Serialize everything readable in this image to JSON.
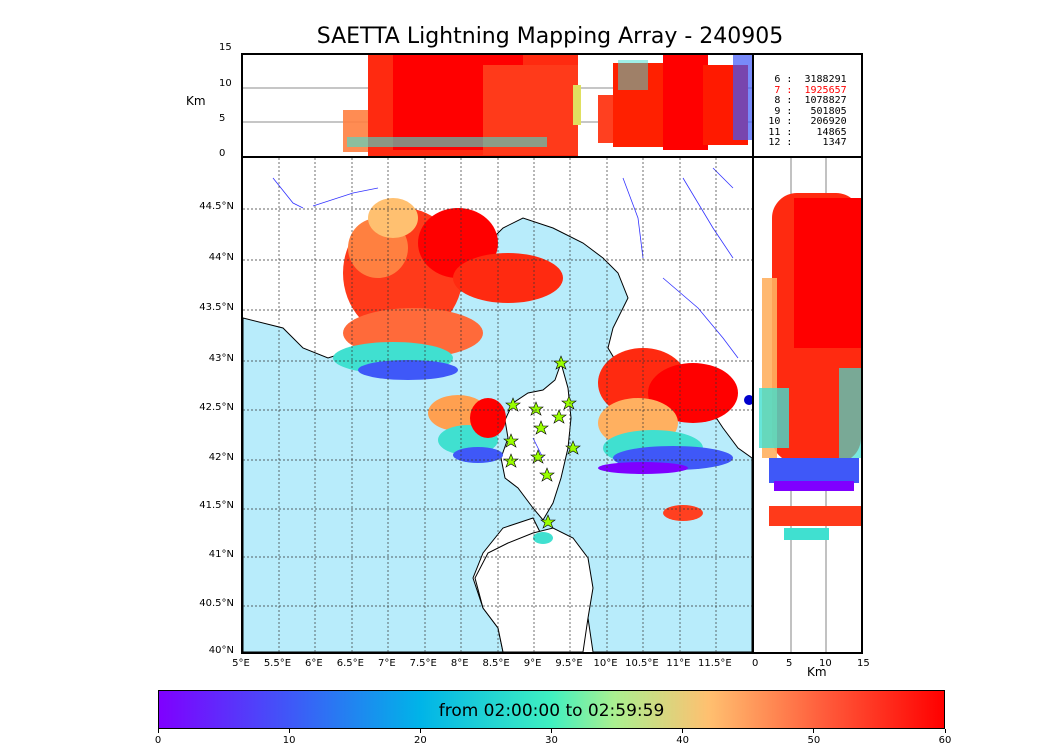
{
  "title": "SAETTA Lightning Mapping Array - 240905",
  "altitude_axis": {
    "label": "Km",
    "ticks": [
      "15",
      "10",
      "5",
      "0"
    ]
  },
  "latitude_ticks": [
    "44.5°N",
    "44°N",
    "43.5°N",
    "43°N",
    "42.5°N",
    "42°N",
    "41.5°N",
    "41°N",
    "40.5°N",
    "40°N"
  ],
  "longitude_ticks": [
    "5°E",
    "5.5°E",
    "6°E",
    "6.5°E",
    "7°E",
    "7.5°E",
    "8°E",
    "8.5°E",
    "9°E",
    "9.5°E",
    "10°E",
    "10.5°E",
    "11°E",
    "11.5°E"
  ],
  "side_altitude_axis": {
    "label": "Km",
    "ticks": [
      "0",
      "5",
      "10",
      "15"
    ]
  },
  "station_counts": [
    {
      "stations": "6",
      "count": "3188291",
      "color": "#000000"
    },
    {
      "stations": "7",
      "count": "1925657",
      "color": "#ff0000"
    },
    {
      "stations": "8",
      "count": "1078827",
      "color": "#000000"
    },
    {
      "stations": "9",
      "count": "501805",
      "color": "#000000"
    },
    {
      "stations": "10",
      "count": "206920",
      "color": "#000000"
    },
    {
      "stations": "11",
      "count": "14865",
      "color": "#000000"
    },
    {
      "stations": "12",
      "count": "1347",
      "color": "#000000"
    }
  ],
  "colorbar": {
    "label": "from 02:00:00 to 02:59:59",
    "ticks": [
      "0",
      "10",
      "20",
      "30",
      "40",
      "50",
      "60"
    ],
    "colors": [
      "#7f00ff",
      "#3f58f8",
      "#00b4e8",
      "#40f0c0",
      "#aaf090",
      "#ffc070",
      "#ff5a3a",
      "#ff0000"
    ]
  },
  "colors": {
    "sea": "#b8ecfb",
    "land": "#ffffff",
    "rivers": "#3333ff",
    "station_marker": "#99ff00"
  }
}
